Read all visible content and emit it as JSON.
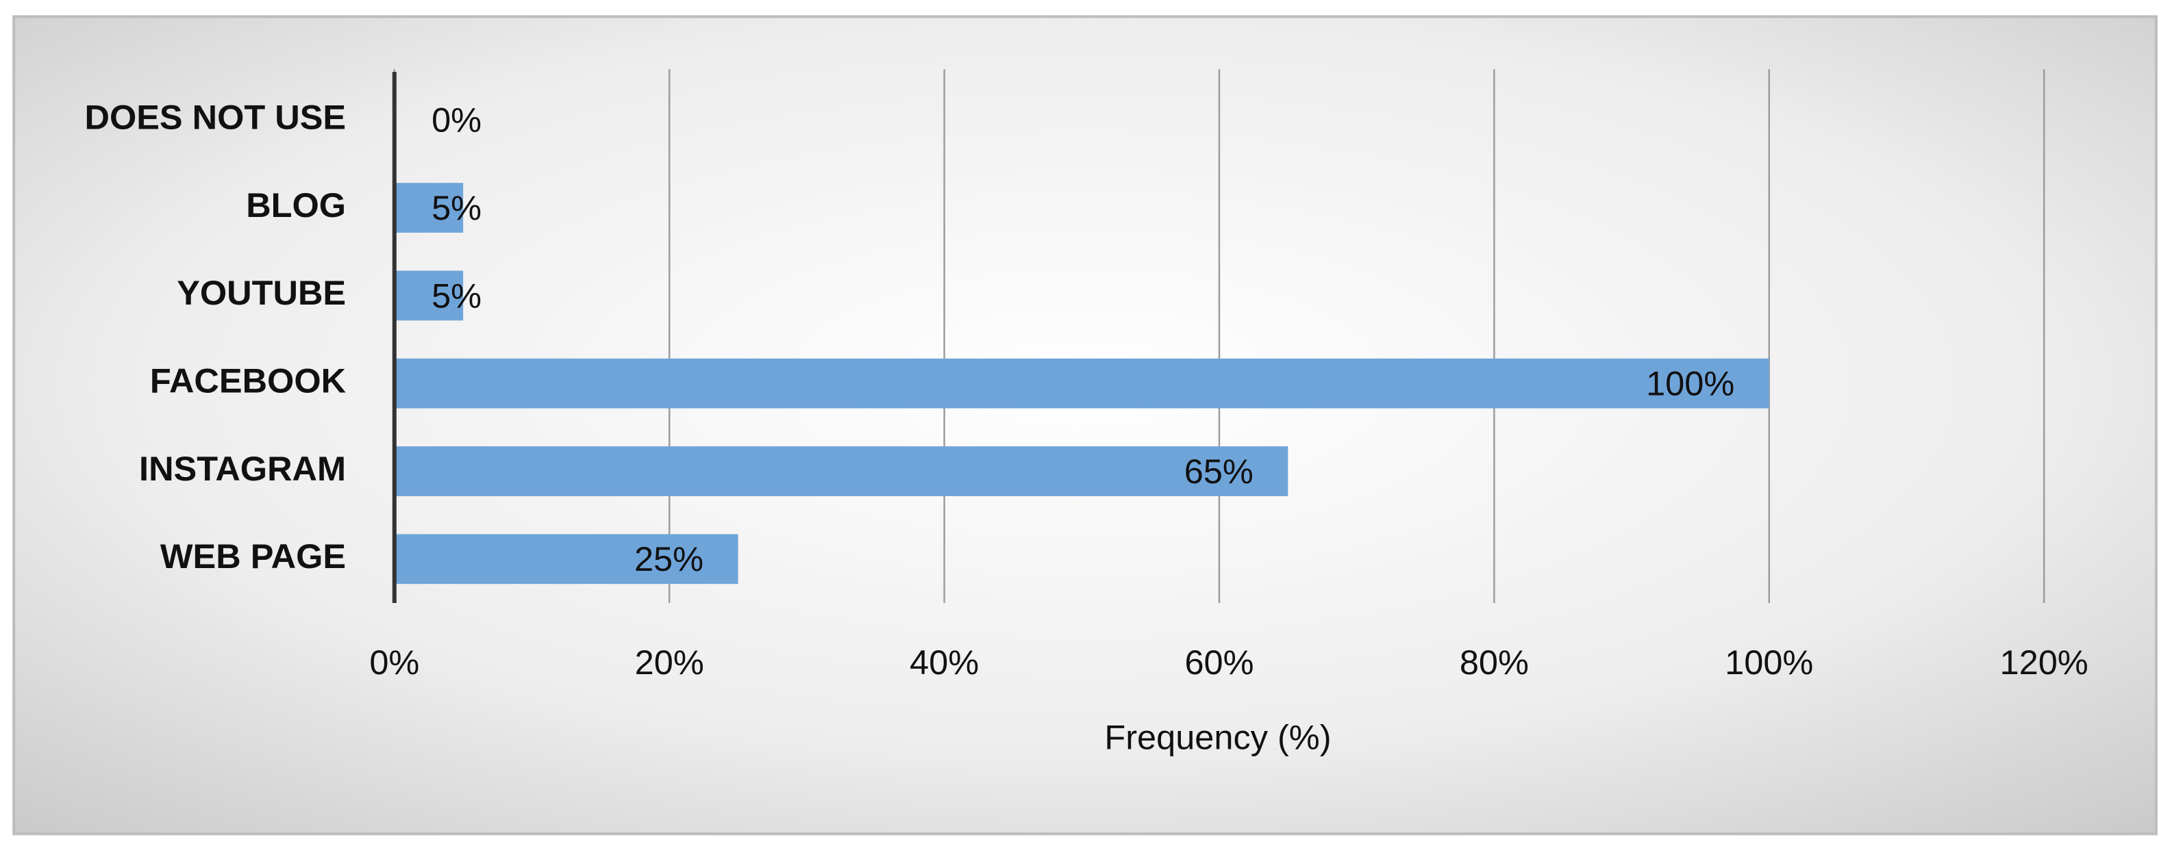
{
  "chart_data": {
    "type": "bar",
    "orientation": "horizontal",
    "categories": [
      "DOES NOT USE",
      "BLOG",
      "YOUTUBE",
      "FACEBOOK",
      "INSTAGRAM",
      "WEB PAGE"
    ],
    "values": [
      0,
      5,
      5,
      100,
      65,
      25
    ],
    "value_labels": [
      "0%",
      "5%",
      "5%",
      "100%",
      "65%",
      "25%"
    ],
    "color": "#6fa4d9",
    "x_label": "Frequency (%)",
    "xlim": [
      0,
      120
    ],
    "xticks": [
      {
        "value": 0,
        "label": "0%"
      },
      {
        "value": 20,
        "label": "20%"
      },
      {
        "value": 40,
        "label": "40%"
      },
      {
        "value": 60,
        "label": "60%"
      },
      {
        "value": 80,
        "label": "80%"
      },
      {
        "value": 100,
        "label": "100%"
      },
      {
        "value": 120,
        "label": "120%"
      }
    ],
    "grid": true
  }
}
